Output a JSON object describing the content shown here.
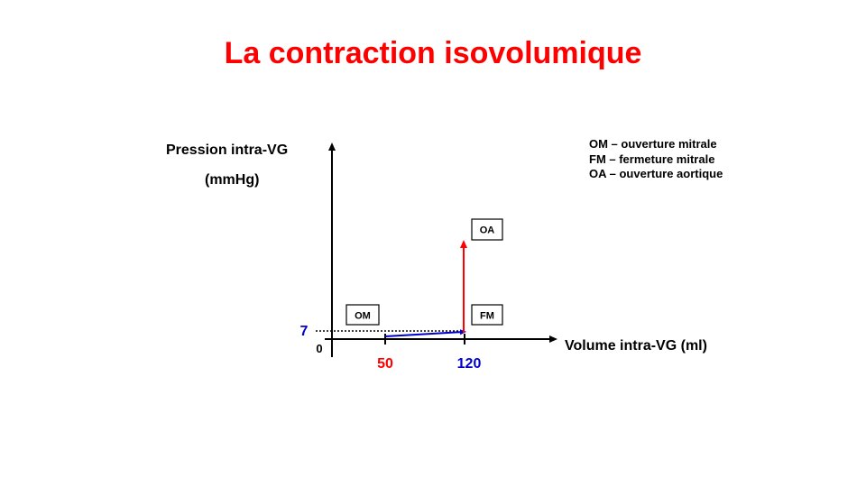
{
  "slide": {
    "title": "La contraction isovolumique"
  },
  "diagram": {
    "y_axis_label_line1": "Pression intra-VG",
    "y_axis_label_line2": "(mmHg)",
    "x_axis_label": "Volume intra-VG (ml)",
    "origin_label": "0",
    "pressure_marker": "7",
    "volume_marker_1": "50",
    "volume_marker_2": "120",
    "box_om": "OM",
    "box_fm": "FM",
    "box_oa": "OA",
    "colors": {
      "title": "#ff0000",
      "red": "#ff0000",
      "blue": "#0000cc",
      "black": "#000000"
    }
  },
  "legend": {
    "items": [
      "OM – ouverture mitrale",
      "FM – fermeture mitrale",
      "OA – ouverture aortique"
    ]
  }
}
